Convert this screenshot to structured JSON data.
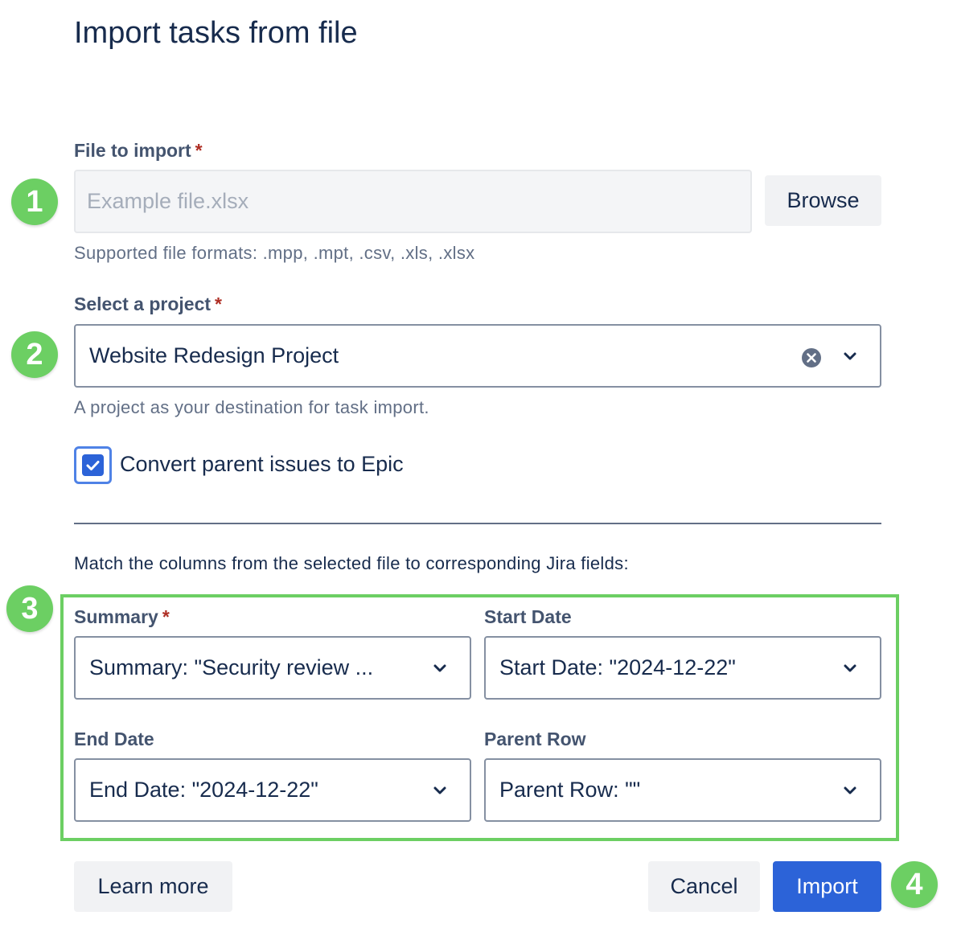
{
  "title": "Import tasks from file",
  "file": {
    "label": "File to import",
    "required": "*",
    "placeholder": "Example file.xlsx",
    "browse": "Browse",
    "helper": "Supported file formats: .mpp, .mpt, .csv, .xls, .xlsx"
  },
  "project": {
    "label": "Select a project",
    "required": "*",
    "value": "Website Redesign Project",
    "helper": "A project as your destination for task import."
  },
  "checkbox": {
    "label": "Convert parent issues to Epic",
    "checked": true
  },
  "mapping": {
    "intro": "Match the columns from the selected file to corresponding Jira fields:",
    "fields": [
      {
        "label": "Summary",
        "required": "*",
        "value": "Summary: \"Security review ..."
      },
      {
        "label": "Start Date",
        "value": "Start Date: \"2024-12-22\""
      },
      {
        "label": "End Date",
        "value": "End Date: \"2024-12-22\""
      },
      {
        "label": "Parent Row",
        "value": "Parent Row: \"\""
      }
    ]
  },
  "buttons": {
    "learn_more": "Learn more",
    "cancel": "Cancel",
    "import": "Import"
  },
  "annotations": [
    "1",
    "2",
    "3",
    "4"
  ],
  "colors": {
    "primary": "#2c63d8",
    "annotation": "#6ccf63"
  }
}
